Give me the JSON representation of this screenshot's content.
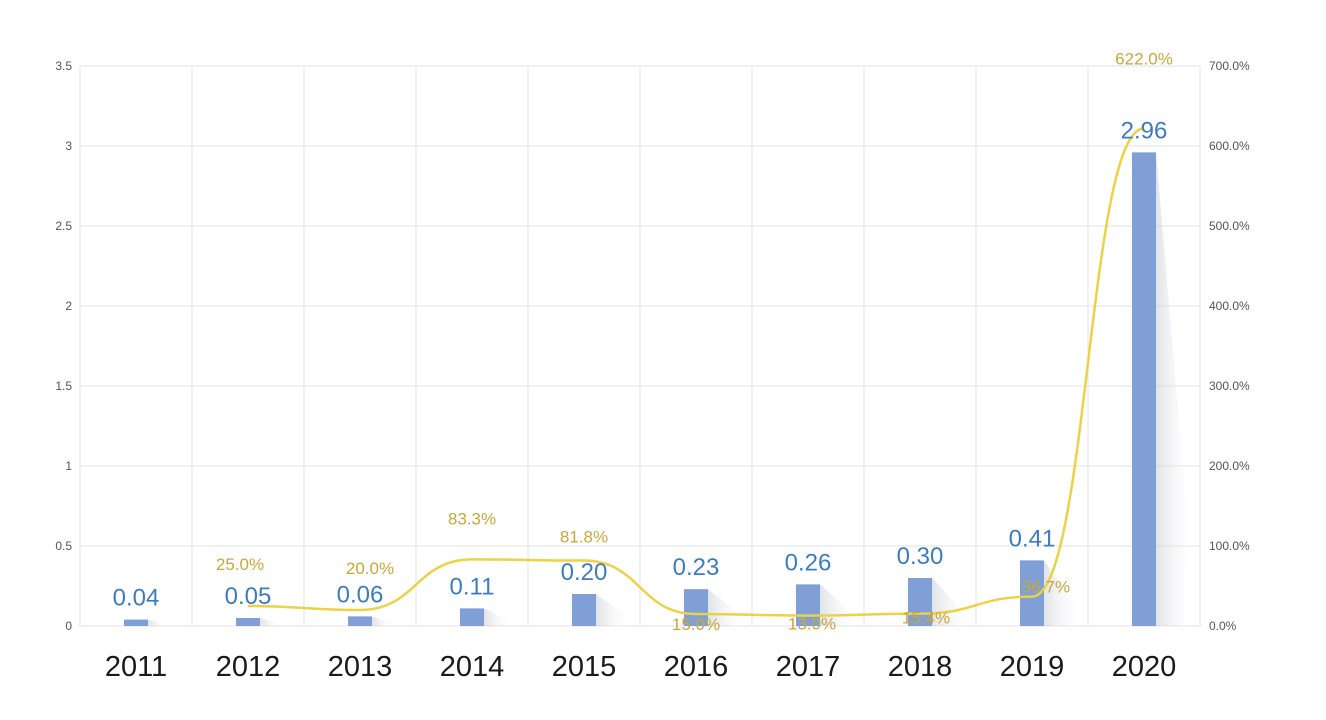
{
  "chart_data": {
    "type": "bar",
    "title": "",
    "categories": [
      "2011",
      "2012",
      "2013",
      "2014",
      "2015",
      "2016",
      "2017",
      "2018",
      "2019",
      "2020"
    ],
    "series": [
      {
        "type": "bar",
        "axis": "left",
        "values": [
          0.04,
          0.05,
          0.06,
          0.11,
          0.2,
          0.23,
          0.26,
          0.3,
          0.41,
          2.96
        ],
        "labels": [
          "0.04",
          "0.05",
          "0.06",
          "0.11",
          "0.20",
          "0.23",
          "0.26",
          "0.30",
          "0.41",
          "2.96"
        ],
        "color": "#7f9fd6"
      },
      {
        "type": "line",
        "axis": "right",
        "values": [
          null,
          25.0,
          20.0,
          83.3,
          81.8,
          15.0,
          13.0,
          15.4,
          36.7,
          622.0
        ],
        "labels": [
          "",
          "25.0%",
          "20.0%",
          "83.3%",
          "81.8%",
          "15.0%",
          "13.0%",
          "15.4%",
          "36.7%",
          "622.0%"
        ],
        "color": "#ecd246"
      }
    ],
    "y_left": {
      "range": [
        0,
        3.5
      ],
      "ticks": [
        0,
        0.5,
        1,
        1.5,
        2,
        2.5,
        3,
        3.5
      ],
      "tick_labels": [
        "0",
        "0.5",
        "1",
        "1.5",
        "2",
        "2.5",
        "3",
        "3.5"
      ]
    },
    "y_right": {
      "range": [
        0,
        700
      ],
      "ticks": [
        0,
        100,
        200,
        300,
        400,
        500,
        600,
        700
      ],
      "tick_labels": [
        "0.0%",
        "100.0%",
        "200.0%",
        "300.0%",
        "400.0%",
        "500.0%",
        "600.0%",
        "700.0%"
      ]
    },
    "grid": true,
    "legend": "none",
    "colors": {
      "bar": "#7f9fd6",
      "bar_label": "#3d7cc0",
      "line": "#ecd246",
      "line_label": "#c9a738",
      "grid": "#e3e3e3",
      "axis_text": "#555555",
      "category_text": "#1a1a1a"
    }
  }
}
